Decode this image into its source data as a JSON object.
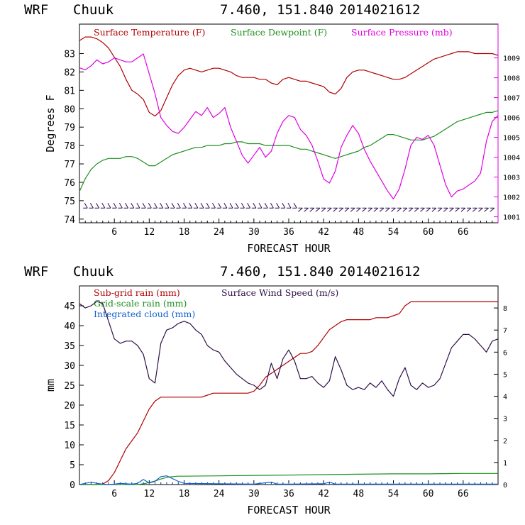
{
  "chart_data": [
    {
      "type": "line",
      "header": {
        "model": "WRF",
        "station": "Chuuk",
        "coords": "7.460, 151.840",
        "init": "2014021612"
      },
      "xlabel": "FORECAST HOUR",
      "ylabel": "Degrees F",
      "xlim": [
        0,
        72
      ],
      "ylim": [
        73.8,
        84.6
      ],
      "y2lim": [
        1000.7,
        1010.7
      ],
      "x_ticks": [
        6,
        12,
        18,
        24,
        30,
        36,
        42,
        48,
        54,
        60,
        66
      ],
      "y_ticks": [
        74,
        75,
        76,
        77,
        78,
        79,
        80,
        81,
        82,
        83
      ],
      "y2_ticks": [
        1001,
        1002,
        1003,
        1004,
        1005,
        1006,
        1007,
        1008,
        1009
      ],
      "colors": {
        "temp": "#b00000",
        "dew": "#1f8f1f",
        "pres": "#e000e0",
        "barbs": "#2a0a4a"
      },
      "series": [
        {
          "name": "Surface Temperature (F)",
          "axis": "left",
          "x": [
            0,
            1,
            2,
            3,
            4,
            5,
            6,
            7,
            8,
            9,
            10,
            11,
            12,
            13,
            14,
            15,
            16,
            17,
            18,
            19,
            20,
            21,
            22,
            23,
            24,
            25,
            26,
            27,
            28,
            29,
            30,
            31,
            32,
            33,
            34,
            35,
            36,
            37,
            38,
            39,
            40,
            41,
            42,
            43,
            44,
            45,
            46,
            47,
            48,
            49,
            50,
            51,
            52,
            53,
            54,
            55,
            56,
            57,
            58,
            59,
            60,
            61,
            62,
            63,
            64,
            65,
            66,
            67,
            68,
            69,
            70,
            71,
            72
          ],
          "values": [
            83.7,
            83.9,
            83.9,
            83.8,
            83.6,
            83.3,
            82.8,
            82.3,
            81.6,
            81.0,
            80.8,
            80.5,
            79.8,
            79.6,
            79.9,
            80.6,
            81.3,
            81.8,
            82.1,
            82.2,
            82.1,
            82.0,
            82.1,
            82.2,
            82.2,
            82.1,
            82.0,
            81.8,
            81.7,
            81.7,
            81.7,
            81.6,
            81.6,
            81.4,
            81.3,
            81.6,
            81.7,
            81.6,
            81.5,
            81.5,
            81.4,
            81.3,
            81.2,
            80.9,
            80.8,
            81.1,
            81.7,
            82.0,
            82.1,
            82.1,
            82.0,
            81.9,
            81.8,
            81.7,
            81.6,
            81.6,
            81.7,
            81.9,
            82.1,
            82.3,
            82.5,
            82.7,
            82.8,
            82.9,
            83.0,
            83.1,
            83.1,
            83.1,
            83.0,
            83.0,
            83.0,
            83.0,
            82.9
          ]
        },
        {
          "name": "Surface Dewpoint (F)",
          "axis": "left",
          "x": [
            0,
            1,
            2,
            3,
            4,
            5,
            6,
            7,
            8,
            9,
            10,
            11,
            12,
            13,
            14,
            15,
            16,
            17,
            18,
            19,
            20,
            21,
            22,
            23,
            24,
            25,
            26,
            27,
            28,
            29,
            30,
            31,
            32,
            33,
            34,
            35,
            36,
            37,
            38,
            39,
            40,
            41,
            42,
            43,
            44,
            45,
            46,
            47,
            48,
            49,
            50,
            51,
            52,
            53,
            54,
            55,
            56,
            57,
            58,
            59,
            60,
            61,
            62,
            63,
            64,
            65,
            66,
            67,
            68,
            69,
            70,
            71,
            72
          ],
          "values": [
            75.5,
            76.2,
            76.7,
            77.0,
            77.2,
            77.3,
            77.3,
            77.3,
            77.4,
            77.4,
            77.3,
            77.1,
            76.9,
            76.9,
            77.1,
            77.3,
            77.5,
            77.6,
            77.7,
            77.8,
            77.9,
            77.9,
            78.0,
            78.0,
            78.0,
            78.1,
            78.1,
            78.2,
            78.2,
            78.1,
            78.1,
            78.1,
            78.0,
            78.0,
            78.0,
            78.0,
            78.0,
            77.9,
            77.8,
            77.8,
            77.7,
            77.6,
            77.5,
            77.4,
            77.3,
            77.4,
            77.5,
            77.6,
            77.7,
            77.9,
            78.0,
            78.2,
            78.4,
            78.6,
            78.6,
            78.5,
            78.4,
            78.3,
            78.3,
            78.3,
            78.4,
            78.5,
            78.7,
            78.9,
            79.1,
            79.3,
            79.4,
            79.5,
            79.6,
            79.7,
            79.8,
            79.8,
            79.9
          ]
        },
        {
          "name": "Surface Pressure (mb)",
          "axis": "right",
          "x": [
            0,
            1,
            2,
            3,
            4,
            5,
            6,
            7,
            8,
            9,
            10,
            11,
            12,
            13,
            14,
            15,
            16,
            17,
            18,
            19,
            20,
            21,
            22,
            23,
            24,
            25,
            26,
            27,
            28,
            29,
            30,
            31,
            32,
            33,
            34,
            35,
            36,
            37,
            38,
            39,
            40,
            41,
            42,
            43,
            44,
            45,
            46,
            47,
            48,
            49,
            50,
            51,
            52,
            53,
            54,
            55,
            56,
            57,
            58,
            59,
            60,
            61,
            62,
            63,
            64,
            65,
            66,
            67,
            68,
            69,
            70,
            71,
            72
          ],
          "values": [
            1008.5,
            1008.4,
            1008.6,
            1008.9,
            1008.7,
            1008.8,
            1009.0,
            1008.9,
            1008.8,
            1008.8,
            1009.0,
            1009.2,
            1008.2,
            1007.2,
            1006.0,
            1005.6,
            1005.3,
            1005.2,
            1005.5,
            1005.9,
            1006.3,
            1006.1,
            1006.5,
            1006.0,
            1006.2,
            1006.5,
            1005.5,
            1004.8,
            1004.1,
            1003.7,
            1004.1,
            1004.5,
            1004.0,
            1004.3,
            1005.2,
            1005.8,
            1006.1,
            1006.0,
            1005.4,
            1005.1,
            1004.6,
            1003.8,
            1002.9,
            1002.7,
            1003.3,
            1004.5,
            1005.1,
            1005.6,
            1005.2,
            1004.4,
            1003.8,
            1003.3,
            1002.8,
            1002.3,
            1001.9,
            1002.4,
            1003.4,
            1004.6,
            1005.0,
            1004.9,
            1005.1,
            1004.6,
            1003.6,
            1002.6,
            1002.0,
            1002.3,
            1002.4,
            1002.6,
            1002.8,
            1003.2,
            1004.8,
            1005.8,
            1006.1
          ]
        }
      ],
      "wind_barbs_at_y": 74.6
    },
    {
      "type": "line",
      "header": {
        "model": "WRF",
        "station": "Chuuk",
        "coords": "7.460, 151.840",
        "init": "2014021612"
      },
      "xlabel": "FORECAST HOUR",
      "ylabel": "mm",
      "xlim": [
        0,
        72
      ],
      "ylim": [
        0,
        50
      ],
      "y2lim": [
        0,
        9
      ],
      "x_ticks": [
        6,
        12,
        18,
        24,
        30,
        36,
        42,
        48,
        54,
        60,
        66
      ],
      "y_ticks": [
        0,
        5,
        10,
        15,
        20,
        25,
        30,
        35,
        40,
        45
      ],
      "y2_ticks": [
        0,
        1,
        2,
        3,
        4,
        5,
        6,
        7,
        8
      ],
      "colors": {
        "subgrid": "#b00000",
        "gridscale": "#1f8f1f",
        "cloud": "#1060d0",
        "wind": "#30104a"
      },
      "series": [
        {
          "name": "Sub-grid rain (mm)",
          "axis": "left",
          "x": [
            0,
            3,
            4,
            5,
            6,
            7,
            8,
            9,
            10,
            11,
            12,
            13,
            14,
            15,
            16,
            17,
            18,
            19,
            20,
            21,
            22,
            23,
            24,
            25,
            26,
            27,
            28,
            29,
            30,
            31,
            32,
            33,
            34,
            35,
            36,
            37,
            38,
            39,
            40,
            41,
            42,
            43,
            44,
            45,
            46,
            47,
            48,
            49,
            50,
            51,
            52,
            53,
            54,
            55,
            56,
            57,
            58,
            59,
            60,
            61,
            62,
            63,
            64,
            65,
            66,
            67,
            68,
            69,
            70,
            71,
            72
          ],
          "values": [
            0,
            0,
            0.1,
            1,
            3,
            6,
            9,
            11,
            13,
            16,
            19,
            21,
            22,
            22,
            22,
            22,
            22,
            22,
            22,
            22,
            22.5,
            23,
            23,
            23,
            23,
            23,
            23,
            23,
            23.5,
            25,
            27,
            28,
            29,
            30,
            31,
            32,
            33,
            33,
            33.5,
            35,
            37,
            39,
            40,
            41,
            41.5,
            41.5,
            41.5,
            41.5,
            41.5,
            42,
            42,
            42,
            42.5,
            43,
            45,
            46,
            46,
            46,
            46,
            46,
            46,
            46,
            46,
            46,
            46,
            46,
            46,
            46,
            46,
            46,
            46
          ]
        },
        {
          "name": "Grid-scale rain (mm)",
          "axis": "left",
          "x": [
            0,
            10,
            11,
            12,
            13,
            14,
            15,
            16,
            17,
            18,
            24,
            30,
            36,
            42,
            48,
            54,
            60,
            66,
            72
          ],
          "values": [
            0,
            0,
            0.2,
            0.5,
            0.9,
            1.4,
            1.8,
            2.0,
            2.1,
            2.1,
            2.2,
            2.3,
            2.4,
            2.5,
            2.6,
            2.7,
            2.7,
            2.8,
            2.8
          ]
        },
        {
          "name": "Integrated cloud (mm)",
          "axis": "left",
          "x": [
            0,
            1,
            2,
            3,
            4,
            5,
            6,
            7,
            8,
            9,
            10,
            11,
            12,
            13,
            14,
            15,
            16,
            17,
            18,
            24,
            30,
            33,
            34,
            36,
            42,
            43,
            44,
            48,
            54,
            60,
            66,
            72
          ],
          "values": [
            0,
            0.3,
            0.6,
            0.3,
            0.1,
            0,
            0.1,
            0.3,
            0.2,
            0.1,
            0.3,
            1.3,
            0.4,
            0.8,
            2.0,
            2.2,
            1.5,
            0.8,
            0.3,
            0.2,
            0.1,
            0.6,
            0.1,
            0.1,
            0.2,
            0.6,
            0.1,
            0.1,
            0.1,
            0.1,
            0.1,
            0.1
          ]
        },
        {
          "name": "Surface Wind Speed (m/s)",
          "axis": "right",
          "x": [
            0,
            1,
            2,
            3,
            4,
            5,
            6,
            7,
            8,
            9,
            10,
            11,
            12,
            13,
            14,
            15,
            16,
            17,
            18,
            19,
            20,
            21,
            22,
            23,
            24,
            25,
            26,
            27,
            28,
            29,
            30,
            31,
            32,
            33,
            34,
            35,
            36,
            37,
            38,
            39,
            40,
            41,
            42,
            43,
            44,
            45,
            46,
            47,
            48,
            49,
            50,
            51,
            52,
            53,
            54,
            55,
            56,
            57,
            58,
            59,
            60,
            61,
            62,
            63,
            64,
            65,
            66,
            67,
            68,
            69,
            70,
            71,
            72
          ],
          "values": [
            8.2,
            8.0,
            8.1,
            8.3,
            8.2,
            7.4,
            6.6,
            6.4,
            6.5,
            6.5,
            6.3,
            5.9,
            4.8,
            4.6,
            6.4,
            7.0,
            7.1,
            7.3,
            7.4,
            7.3,
            7.0,
            6.8,
            6.3,
            6.1,
            6.0,
            5.6,
            5.3,
            5.0,
            4.8,
            4.6,
            4.5,
            4.3,
            4.5,
            5.5,
            4.8,
            5.7,
            6.1,
            5.6,
            4.8,
            4.8,
            4.9,
            4.6,
            4.4,
            4.7,
            5.8,
            5.2,
            4.5,
            4.3,
            4.4,
            4.3,
            4.6,
            4.4,
            4.7,
            4.3,
            4.0,
            4.8,
            5.3,
            4.5,
            4.3,
            4.6,
            4.4,
            4.5,
            4.8,
            5.5,
            6.2,
            6.5,
            6.8,
            6.8,
            6.6,
            6.3,
            6.0,
            6.5,
            6.6
          ]
        }
      ]
    }
  ]
}
